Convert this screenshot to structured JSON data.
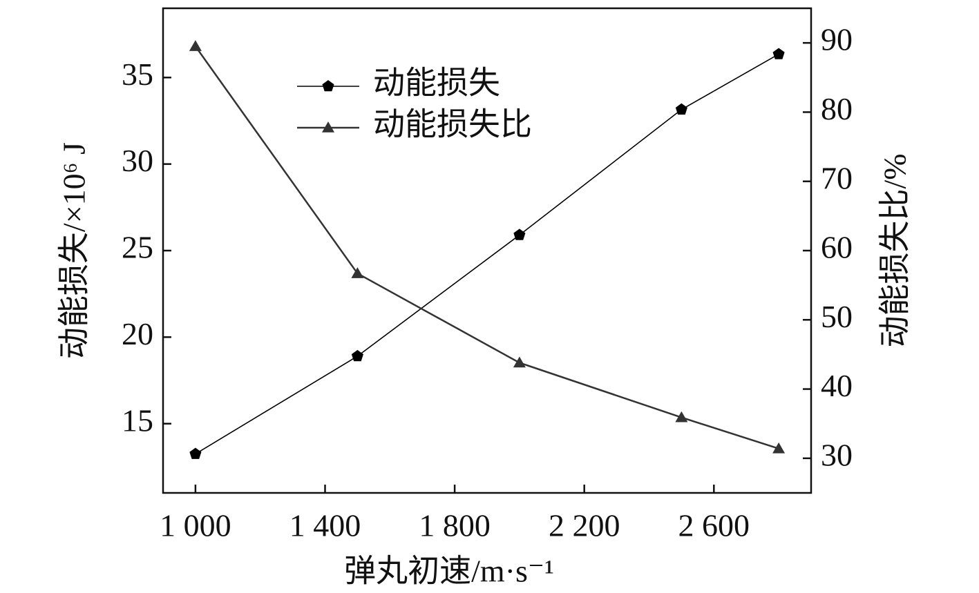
{
  "chart_data": {
    "type": "line",
    "x": [
      1000,
      1500,
      2000,
      2500,
      2800
    ],
    "xlabel": "弹丸初速/m·s⁻¹",
    "ylabel": "动能损失/×10⁶ J",
    "y2label": "动能损失比/%",
    "xlim": [
      900,
      2900
    ],
    "xticks": [
      {
        "value": 1000,
        "label": "1 000"
      },
      {
        "value": 1400,
        "label": "1 400"
      },
      {
        "value": 1800,
        "label": "1 800"
      },
      {
        "value": 2200,
        "label": "2 200"
      },
      {
        "value": 2600,
        "label": "2 600"
      }
    ],
    "ylim": [
      11,
      39
    ],
    "yticks": [
      15,
      20,
      25,
      30,
      35
    ],
    "y2lim": [
      25,
      95
    ],
    "y2ticks": [
      30,
      40,
      50,
      60,
      70,
      80,
      90
    ],
    "legend": "upper-left",
    "series": [
      {
        "name": "动能损失",
        "color": "#000000",
        "marker": "pentagon",
        "values": [
          13.25,
          18.9,
          25.9,
          33.15,
          36.35
        ]
      },
      {
        "name": "动能损失比",
        "color": "#333333",
        "marker": "triangle",
        "axis": "y2",
        "values": [
          89.5,
          56.7,
          43.8,
          35.9,
          31.4
        ]
      }
    ]
  }
}
